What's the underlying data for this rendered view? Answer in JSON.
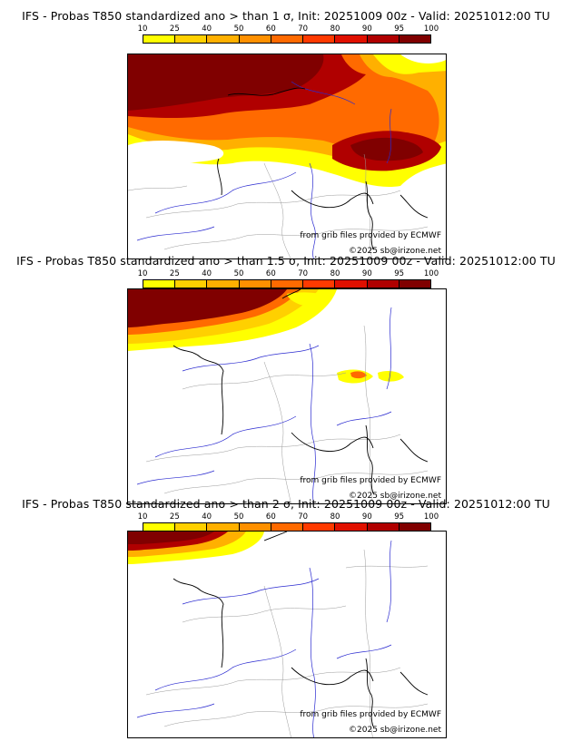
{
  "colorbar": {
    "ticks": [
      "10",
      "25",
      "40",
      "50",
      "60",
      "70",
      "80",
      "90",
      "95",
      "100"
    ],
    "colors": [
      "#ffff00",
      "#ffd000",
      "#ffb000",
      "#ff9000",
      "#ff6a00",
      "#ff3a00",
      "#e01000",
      "#b00000",
      "#800000"
    ]
  },
  "panels": [
    {
      "title": "IFS - Probas T850  standardized ano > than 1 σ, Init: 20251009 00z - Valid: 20251012:00 TU",
      "source_credit": "from grib files provided by ECMWF",
      "copyright": "©2025 sb@irizone.net"
    },
    {
      "title": "IFS - Probas T850  standardized ano > than 1.5 σ, Init: 20251009 00z - Valid: 20251012:00 TU",
      "source_credit": "from grib files provided by ECMWF",
      "copyright": "©2025 sb@irizone.net"
    },
    {
      "title": "IFS - Probas T850  standardized ano > than 2 σ, Init: 20251009 00z - Valid: 20251012:00 TU",
      "source_credit": "from grib files provided by ECMWF",
      "copyright": "©2025 sb@irizone.net"
    }
  ],
  "colors": {
    "coast": "#000000",
    "rivers": "#2a2ad0",
    "borders": "#9a9a9a"
  }
}
